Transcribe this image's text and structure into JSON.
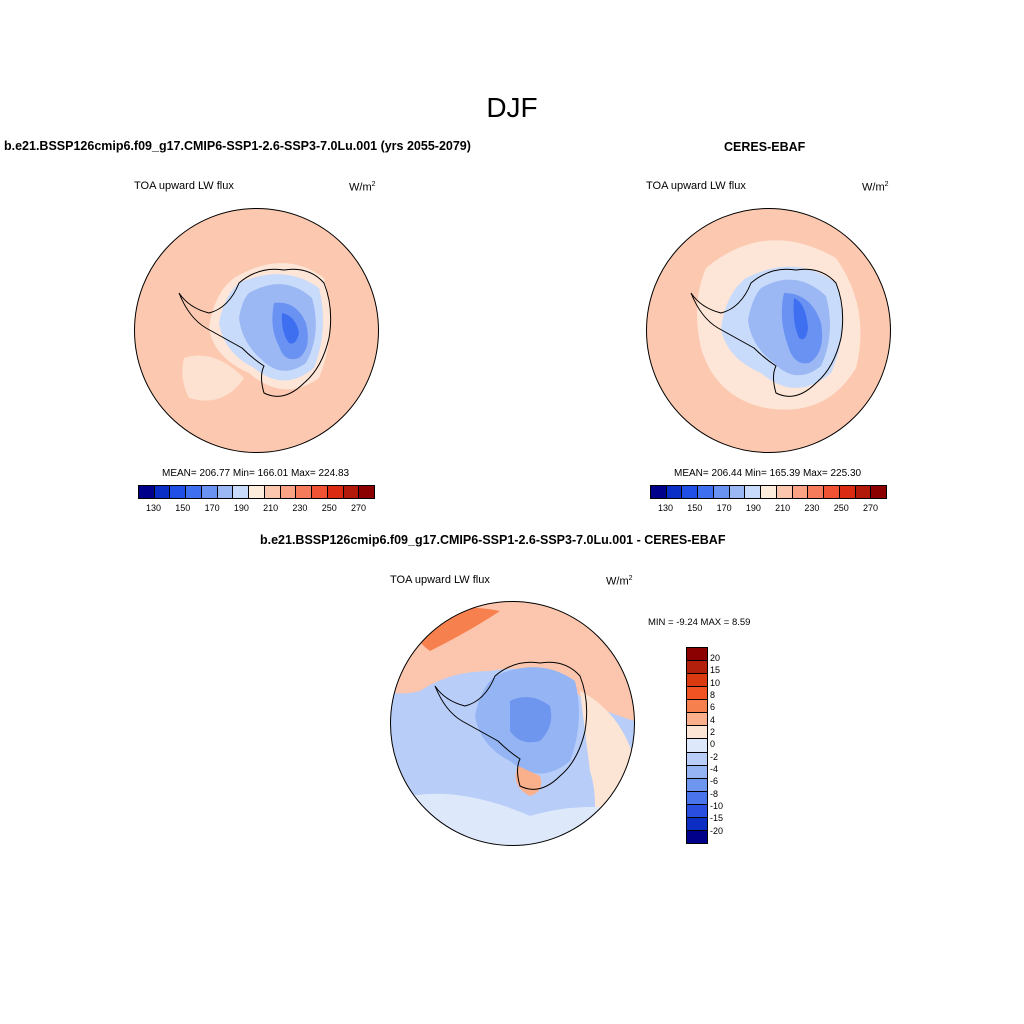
{
  "figure": {
    "title": "DJF"
  },
  "panel_left": {
    "title": "b.e21.BSSP126cmip6.f09_g17.CMIP6-SSP1-2.6-SSP3-7.0Lu.001 (yrs 2055-2079)",
    "variable": "TOA upward LW flux",
    "units_base": "W/m",
    "units_exp": "2",
    "stats": "MEAN= 206.77  Min= 166.01  Max= 224.83"
  },
  "panel_right": {
    "title": "CERES-EBAF",
    "variable": "TOA upward LW flux",
    "units_base": "W/m",
    "units_exp": "2",
    "stats": "MEAN= 206.44  Min= 165.39  Max= 225.30"
  },
  "panel_diff": {
    "title": "b.e21.BSSP126cmip6.f09_g17.CMIP6-SSP1-2.6-SSP3-7.0Lu.001 - CERES-EBAF",
    "variable": "TOA upward LW flux",
    "units_base": "W/m",
    "units_exp": "2",
    "minmax": "MIN =  -9.24 MAX =   8.59"
  },
  "colorbar_abs": {
    "colors": [
      "#00008b",
      "#0a2fc6",
      "#1f4fe6",
      "#3d6ff0",
      "#6a92f2",
      "#9bb8f5",
      "#c9dbfa",
      "#fdebdc",
      "#fcc6ae",
      "#f9a384",
      "#f57b5a",
      "#ef5333",
      "#db2a12",
      "#b3190a",
      "#8b0000"
    ],
    "tick_labels": [
      "130",
      "150",
      "170",
      "190",
      "210",
      "230",
      "250",
      "270"
    ]
  },
  "colorbar_diff": {
    "colors": [
      "#8b0000",
      "#b3200b",
      "#d93a10",
      "#f25322",
      "#f7804f",
      "#fbb08c",
      "#fde5d5",
      "#dde9fb",
      "#b8cdf8",
      "#94b4f4",
      "#6f96ef",
      "#4a74eb",
      "#2a4ee0",
      "#0d2ec2",
      "#00008b"
    ],
    "tick_labels": [
      "20",
      "15",
      "10",
      "8",
      "6",
      "4",
      "2",
      "0",
      "-2",
      "-4",
      "-6",
      "-8",
      "-10",
      "-15",
      "-20"
    ]
  }
}
